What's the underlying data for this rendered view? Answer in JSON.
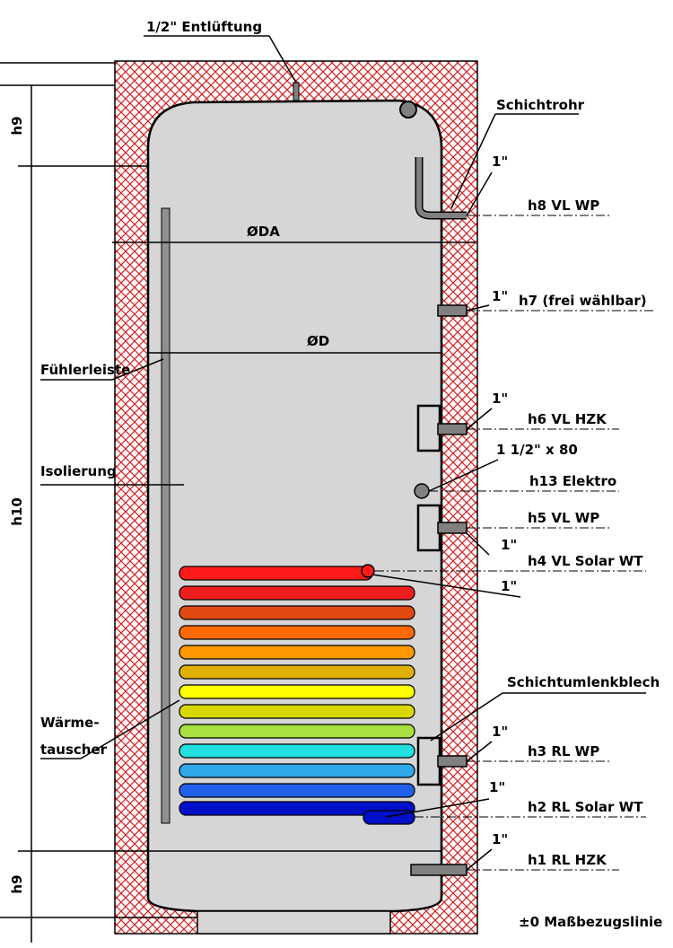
{
  "vent": "1/2\" Entlüftung",
  "stratification_pipe": "Schichtrohr",
  "diameters": {
    "outer": "ØDA",
    "inner": "ØD"
  },
  "sensor_strip": "Fühlerleiste",
  "insulation": "Isolierung",
  "heat_exchanger": [
    "Wärme-",
    "tauscher"
  ],
  "baffle": "Schichtumlenkblech",
  "reference_line": "±0 Maßbezugslinie",
  "dimensions": [
    "h9",
    "h10",
    "h9"
  ],
  "connections": [
    {
      "label": "h8 VL WP",
      "size": "1\""
    },
    {
      "label": "h7 (frei wählbar)",
      "size": "1\""
    },
    {
      "label": "h6 VL HZK",
      "size": "1\""
    },
    {
      "label": "h13 Elektro",
      "size": "1 1/2\" x 80"
    },
    {
      "label": "h5 VL WP",
      "size": "1\""
    },
    {
      "label": "h4 VL Solar WT",
      "size": "1\""
    },
    {
      "label": "h3 RL WP",
      "size": "1\""
    },
    {
      "label": "h2 RL Solar WT",
      "size": "1\""
    },
    {
      "label": "h1 RL HZK",
      "size": "1\""
    }
  ]
}
